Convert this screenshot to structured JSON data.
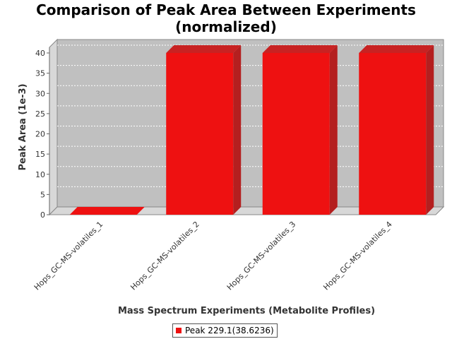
{
  "chart_data": {
    "type": "bar",
    "title_lines": [
      "Comparison of Peak Area Between Experiments",
      "(normalized)"
    ],
    "xlabel": "Mass Spectrum Experiments (Metabolite Profiles)",
    "ylabel": "Peak Area (1e-3)",
    "categories": [
      "Hops_GC-MS-volatiles_1",
      "Hops_GC-MS-volatiles_2",
      "Hops_GC-MS-volatiles_3",
      "Hops_GC-MS-volatiles_4"
    ],
    "series": [
      {
        "name": "Peak 229.1(38.6236)",
        "values": [
          0,
          40,
          40,
          40
        ]
      }
    ],
    "ylim": [
      0,
      40
    ],
    "yticks": [
      0,
      5,
      10,
      15,
      20,
      25,
      30,
      35,
      40
    ],
    "grid": true,
    "legend_position": "bottom",
    "colors": {
      "bar": "#ee1111",
      "bar_side": "#b41f1f",
      "bar_top": "#c82222",
      "plot_bg": "#c0c0c0"
    }
  }
}
